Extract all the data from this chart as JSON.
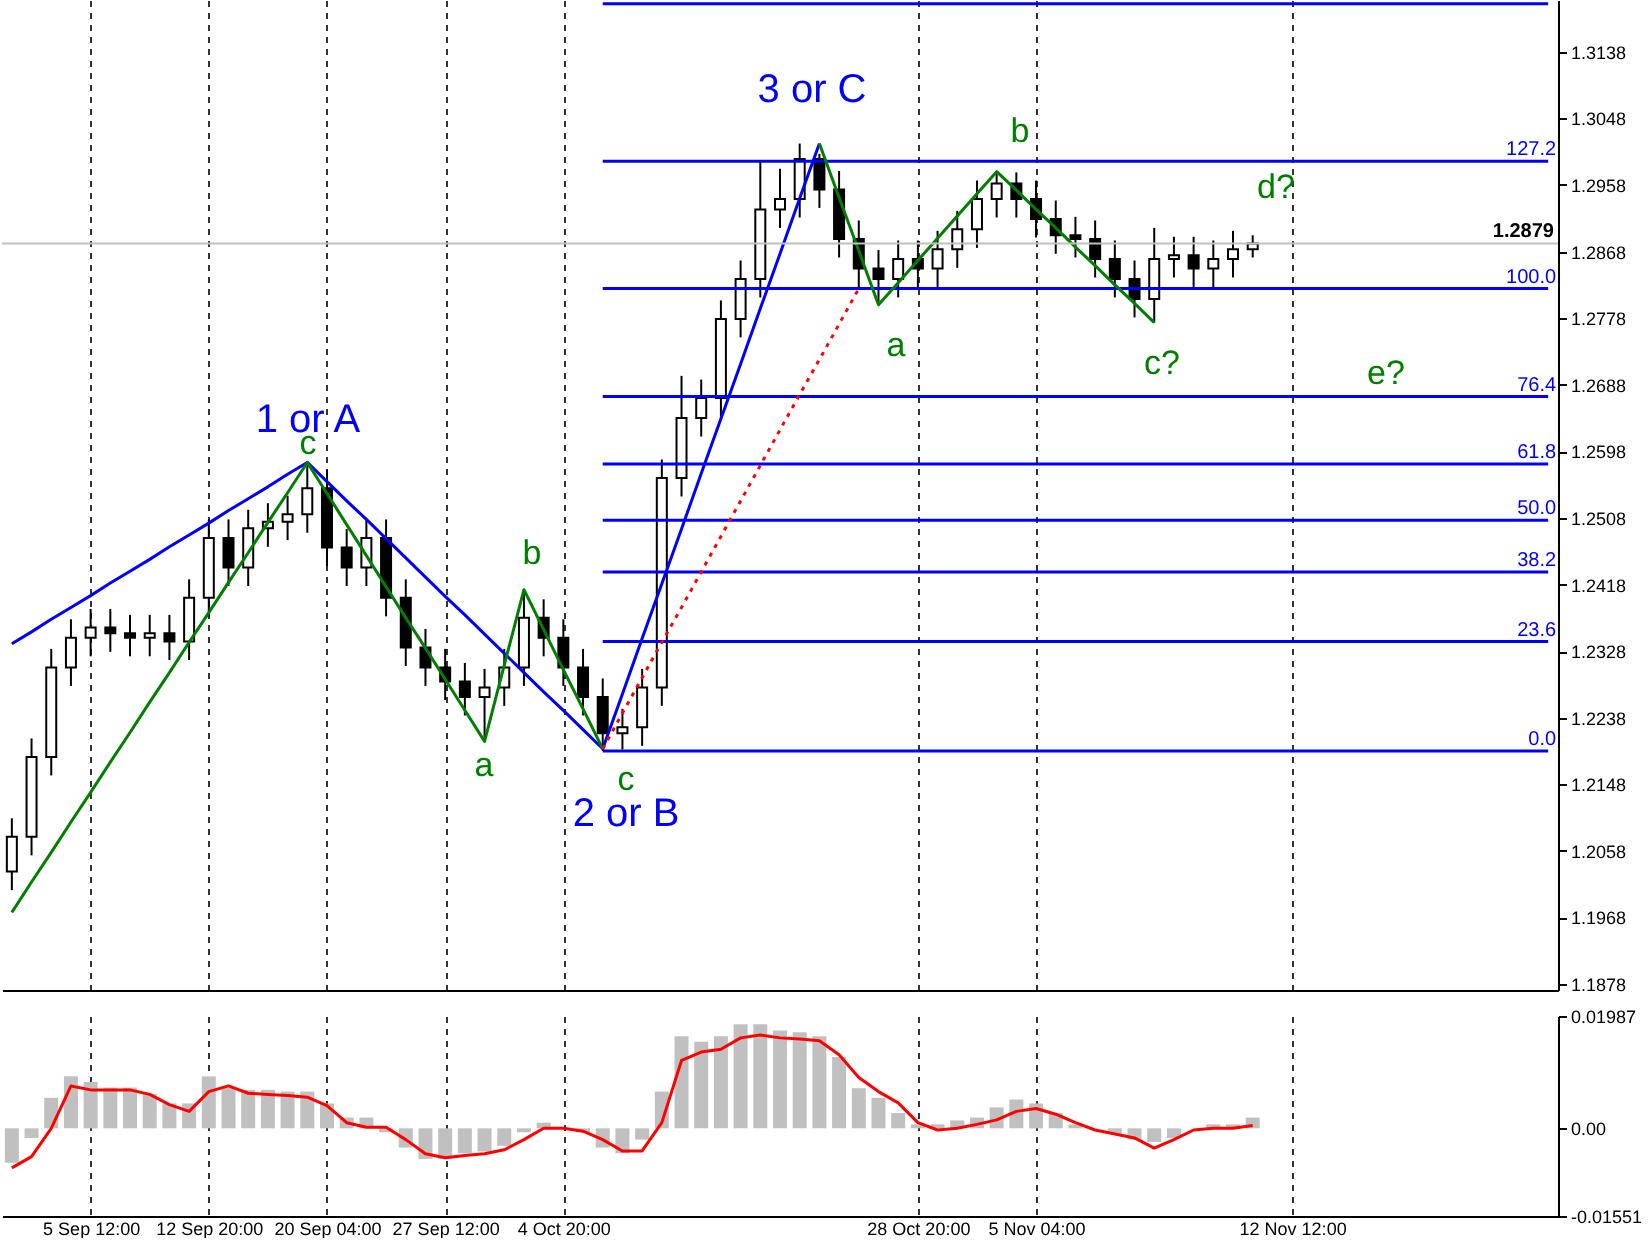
{
  "chart_data": [
    {
      "type": "candlestick",
      "categories": [
        null,
        null,
        null,
        null,
        null,
        null,
        null,
        null,
        null,
        null,
        null,
        null,
        null,
        null,
        null,
        null,
        null,
        null,
        null,
        null,
        null,
        null,
        null,
        null,
        null,
        null,
        null,
        null,
        null,
        null,
        null,
        null,
        null,
        null,
        null,
        null,
        null,
        null,
        null,
        null,
        null,
        null,
        null,
        null,
        null,
        null,
        null,
        null,
        null,
        null,
        null,
        null,
        null,
        null,
        null,
        null,
        null,
        null,
        null,
        null,
        null,
        null,
        null,
        null,
        null,
        null,
        null,
        null,
        null,
        null,
        null,
        null,
        null,
        null,
        null,
        null,
        null,
        null,
        null
      ],
      "ohlc": [
        [
          1.203,
          1.2102,
          1.2005,
          1.2077
        ],
        [
          1.2077,
          1.221,
          1.2052,
          1.2185
        ],
        [
          1.2185,
          1.2331,
          1.216,
          1.2306
        ],
        [
          1.2306,
          1.2371,
          1.2281,
          1.2346
        ],
        [
          1.2346,
          1.2385,
          1.2321,
          1.236
        ],
        [
          1.236,
          1.2385,
          1.2327,
          1.2352
        ],
        [
          1.2352,
          1.2377,
          1.2321,
          1.2346
        ],
        [
          1.2346,
          1.2377,
          1.2321,
          1.2352
        ],
        [
          1.2352,
          1.2377,
          1.2316,
          1.2341
        ],
        [
          1.2341,
          1.2425,
          1.2316,
          1.24
        ],
        [
          1.24,
          1.2506,
          1.2375,
          1.2481
        ],
        [
          1.2481,
          1.2506,
          1.2416,
          1.2441
        ],
        [
          1.2441,
          1.2519,
          1.2416,
          1.2494
        ],
        [
          1.2494,
          1.2528,
          1.2469,
          1.2503
        ],
        [
          1.2503,
          1.2538,
          1.2478,
          1.2513
        ],
        [
          1.2513,
          1.2583,
          1.2488,
          1.2548
        ],
        [
          1.2548,
          1.2573,
          1.2443,
          1.2468
        ],
        [
          1.2468,
          1.2493,
          1.2416,
          1.2441
        ],
        [
          1.2441,
          1.2506,
          1.2416,
          1.2481
        ],
        [
          1.2481,
          1.2506,
          1.2375,
          1.24
        ],
        [
          1.24,
          1.2425,
          1.2308,
          1.2333
        ],
        [
          1.2333,
          1.2358,
          1.2281,
          1.2306
        ],
        [
          1.2306,
          1.2331,
          1.2262,
          1.2287
        ],
        [
          1.2287,
          1.2312,
          1.2241,
          1.2266
        ],
        [
          1.2266,
          1.2304,
          1.2206,
          1.2279
        ],
        [
          1.2279,
          1.2331,
          1.2254,
          1.2306
        ],
        [
          1.2306,
          1.2411,
          1.2281,
          1.2373
        ],
        [
          1.2373,
          1.2398,
          1.2321,
          1.2346
        ],
        [
          1.2346,
          1.2371,
          1.2281,
          1.2306
        ],
        [
          1.2306,
          1.2331,
          1.2241,
          1.2266
        ],
        [
          1.2266,
          1.2291,
          1.2193,
          1.2217
        ],
        [
          1.2217,
          1.225,
          1.2195,
          1.2225
        ],
        [
          1.2225,
          1.2304,
          1.22,
          1.2279
        ],
        [
          1.2279,
          1.2587,
          1.2254,
          1.2562
        ],
        [
          1.2562,
          1.27,
          1.2537,
          1.2643
        ],
        [
          1.2643,
          1.2695,
          1.2618,
          1.267
        ],
        [
          1.267,
          1.2802,
          1.2645,
          1.2777
        ],
        [
          1.2777,
          1.2856,
          1.2752,
          1.2831
        ],
        [
          1.2831,
          1.299,
          1.2806,
          1.2925
        ],
        [
          1.2925,
          1.298,
          1.29,
          1.2939
        ],
        [
          1.2939,
          1.3014,
          1.2914,
          1.2993
        ],
        [
          1.2993,
          1.3,
          1.2927,
          1.2952
        ],
        [
          1.2952,
          1.2977,
          1.286,
          1.2885
        ],
        [
          1.2885,
          1.291,
          1.282,
          1.2845
        ],
        [
          1.2845,
          1.287,
          1.2796,
          1.2831
        ],
        [
          1.2831,
          1.2883,
          1.2806,
          1.2858
        ],
        [
          1.2858,
          1.2883,
          1.282,
          1.2845
        ],
        [
          1.2845,
          1.2896,
          1.282,
          1.2871
        ],
        [
          1.2871,
          1.2923,
          1.2846,
          1.2898
        ],
        [
          1.2898,
          1.2964,
          1.2873,
          1.2939
        ],
        [
          1.2939,
          1.2976,
          1.2914,
          1.296
        ],
        [
          1.296,
          1.2975,
          1.2914,
          1.2939
        ],
        [
          1.2939,
          1.2964,
          1.2887,
          1.2912
        ],
        [
          1.2912,
          1.2937,
          1.2865,
          1.289
        ],
        [
          1.289,
          1.2915,
          1.286,
          1.2885
        ],
        [
          1.2885,
          1.291,
          1.2833,
          1.2858
        ],
        [
          1.2858,
          1.2883,
          1.2806,
          1.2831
        ],
        [
          1.2831,
          1.2856,
          1.2779,
          1.2804
        ],
        [
          1.2804,
          1.29,
          1.2772,
          1.2858
        ],
        [
          1.2858,
          1.2888,
          1.2833,
          1.2863
        ],
        [
          1.2863,
          1.2888,
          1.282,
          1.2845
        ],
        [
          1.2845,
          1.2883,
          1.282,
          1.2858
        ],
        [
          1.2858,
          1.2896,
          1.2833,
          1.2871
        ],
        [
          1.2871,
          1.289,
          1.286,
          1.2879
        ],
        null,
        null,
        null,
        null,
        null,
        null,
        null,
        null,
        null,
        null,
        null,
        null,
        null,
        null,
        null
      ],
      "ylim": [
        1.187,
        1.3208
      ],
      "yticks": [
        1.1878,
        1.1968,
        1.2058,
        1.2148,
        1.2238,
        1.2328,
        1.2418,
        1.2508,
        1.2598,
        1.2688,
        1.2778,
        1.2868,
        1.2958,
        1.3048,
        1.3138
      ],
      "grid": "x",
      "tick_labels": "y",
      "series": [
        {
          "type": "line",
          "color": "#0000ff",
          "values": [
            null,
            null,
            null,
            null,
            null,
            null,
            null,
            null,
            null,
            null,
            null,
            null,
            null,
            null,
            null,
            null,
            null,
            null,
            null,
            null,
            null,
            null,
            null,
            null,
            null,
            null,
            null,
            null,
            null,
            null,
            1.3203,
            1.3203,
            1.3203,
            1.3203,
            1.3203,
            1.3203,
            1.3203,
            1.3203,
            1.3203,
            1.3203,
            1.3203,
            1.3203,
            1.3203,
            1.3203,
            1.3203,
            1.3203,
            1.3203,
            1.3203,
            1.3203,
            1.3203,
            1.3203,
            1.3203,
            1.3203,
            1.3203,
            1.3203,
            1.3203,
            1.3203,
            1.3203,
            1.3203,
            1.3203,
            1.3203,
            1.3203,
            1.3203,
            1.3203,
            1.3203,
            1.3203,
            1.3203,
            1.3203,
            1.3203,
            1.3203,
            1.3203,
            1.3203,
            1.3203,
            1.3203,
            1.3203,
            1.3203,
            1.3203,
            1.3203,
            1.3203
          ]
        },
        {
          "type": "line",
          "name": "127.2",
          "color": "#0000ff",
          "values": [
            null,
            null,
            null,
            null,
            null,
            null,
            null,
            null,
            null,
            null,
            null,
            null,
            null,
            null,
            null,
            null,
            null,
            null,
            null,
            null,
            null,
            null,
            null,
            null,
            null,
            null,
            null,
            null,
            null,
            null,
            1.299,
            1.299,
            1.299,
            1.299,
            1.299,
            1.299,
            1.299,
            1.299,
            1.299,
            1.299,
            1.299,
            1.299,
            1.299,
            1.299,
            1.299,
            1.299,
            1.299,
            1.299,
            1.299,
            1.299,
            1.299,
            1.299,
            1.299,
            1.299,
            1.299,
            1.299,
            1.299,
            1.299,
            1.299,
            1.299,
            1.299,
            1.299,
            1.299,
            1.299,
            1.299,
            1.299,
            1.299,
            1.299,
            1.299,
            1.299,
            1.299,
            1.299,
            1.299,
            1.299,
            1.299,
            1.299,
            1.299,
            1.299,
            1.299
          ]
        },
        {
          "type": "line",
          "name": "100.0",
          "color": "#0000ff",
          "values": [
            null,
            null,
            null,
            null,
            null,
            null,
            null,
            null,
            null,
            null,
            null,
            null,
            null,
            null,
            null,
            null,
            null,
            null,
            null,
            null,
            null,
            null,
            null,
            null,
            null,
            null,
            null,
            null,
            null,
            null,
            1.2818,
            1.2818,
            1.2818,
            1.2818,
            1.2818,
            1.2818,
            1.2818,
            1.2818,
            1.2818,
            1.2818,
            1.2818,
            1.2818,
            1.2818,
            1.2818,
            1.2818,
            1.2818,
            1.2818,
            1.2818,
            1.2818,
            1.2818,
            1.2818,
            1.2818,
            1.2818,
            1.2818,
            1.2818,
            1.2818,
            1.2818,
            1.2818,
            1.2818,
            1.2818,
            1.2818,
            1.2818,
            1.2818,
            1.2818,
            1.2818,
            1.2818,
            1.2818,
            1.2818,
            1.2818,
            1.2818,
            1.2818,
            1.2818,
            1.2818,
            1.2818,
            1.2818,
            1.2818,
            1.2818,
            1.2818,
            1.2818
          ]
        },
        {
          "type": "line",
          "name": "76.4",
          "color": "#0000ff",
          "values": [
            null,
            null,
            null,
            null,
            null,
            null,
            null,
            null,
            null,
            null,
            null,
            null,
            null,
            null,
            null,
            null,
            null,
            null,
            null,
            null,
            null,
            null,
            null,
            null,
            null,
            null,
            null,
            null,
            null,
            null,
            1.2672,
            1.2672,
            1.2672,
            1.2672,
            1.2672,
            1.2672,
            1.2672,
            1.2672,
            1.2672,
            1.2672,
            1.2672,
            1.2672,
            1.2672,
            1.2672,
            1.2672,
            1.2672,
            1.2672,
            1.2672,
            1.2672,
            1.2672,
            1.2672,
            1.2672,
            1.2672,
            1.2672,
            1.2672,
            1.2672,
            1.2672,
            1.2672,
            1.2672,
            1.2672,
            1.2672,
            1.2672,
            1.2672,
            1.2672,
            1.2672,
            1.2672,
            1.2672,
            1.2672,
            1.2672,
            1.2672,
            1.2672,
            1.2672,
            1.2672,
            1.2672,
            1.2672,
            1.2672,
            1.2672,
            1.2672,
            1.2672
          ]
        },
        {
          "type": "line",
          "name": "61.8",
          "color": "#0000ff",
          "values": [
            null,
            null,
            null,
            null,
            null,
            null,
            null,
            null,
            null,
            null,
            null,
            null,
            null,
            null,
            null,
            null,
            null,
            null,
            null,
            null,
            null,
            null,
            null,
            null,
            null,
            null,
            null,
            null,
            null,
            null,
            1.2581,
            1.2581,
            1.2581,
            1.2581,
            1.2581,
            1.2581,
            1.2581,
            1.2581,
            1.2581,
            1.2581,
            1.2581,
            1.2581,
            1.2581,
            1.2581,
            1.2581,
            1.2581,
            1.2581,
            1.2581,
            1.2581,
            1.2581,
            1.2581,
            1.2581,
            1.2581,
            1.2581,
            1.2581,
            1.2581,
            1.2581,
            1.2581,
            1.2581,
            1.2581,
            1.2581,
            1.2581,
            1.2581,
            1.2581,
            1.2581,
            1.2581,
            1.2581,
            1.2581,
            1.2581,
            1.2581,
            1.2581,
            1.2581,
            1.2581,
            1.2581,
            1.2581,
            1.2581,
            1.2581,
            1.2581,
            1.2581
          ]
        },
        {
          "type": "line",
          "name": "50.0",
          "color": "#0000ff",
          "values": [
            null,
            null,
            null,
            null,
            null,
            null,
            null,
            null,
            null,
            null,
            null,
            null,
            null,
            null,
            null,
            null,
            null,
            null,
            null,
            null,
            null,
            null,
            null,
            null,
            null,
            null,
            null,
            null,
            null,
            null,
            1.2505,
            1.2505,
            1.2505,
            1.2505,
            1.2505,
            1.2505,
            1.2505,
            1.2505,
            1.2505,
            1.2505,
            1.2505,
            1.2505,
            1.2505,
            1.2505,
            1.2505,
            1.2505,
            1.2505,
            1.2505,
            1.2505,
            1.2505,
            1.2505,
            1.2505,
            1.2505,
            1.2505,
            1.2505,
            1.2505,
            1.2505,
            1.2505,
            1.2505,
            1.2505,
            1.2505,
            1.2505,
            1.2505,
            1.2505,
            1.2505,
            1.2505,
            1.2505,
            1.2505,
            1.2505,
            1.2505,
            1.2505,
            1.2505,
            1.2505,
            1.2505,
            1.2505,
            1.2505,
            1.2505,
            1.2505,
            1.2505
          ]
        },
        {
          "type": "line",
          "name": "38.2",
          "color": "#0000ff",
          "values": [
            null,
            null,
            null,
            null,
            null,
            null,
            null,
            null,
            null,
            null,
            null,
            null,
            null,
            null,
            null,
            null,
            null,
            null,
            null,
            null,
            null,
            null,
            null,
            null,
            null,
            null,
            null,
            null,
            null,
            null,
            1.2435,
            1.2435,
            1.2435,
            1.2435,
            1.2435,
            1.2435,
            1.2435,
            1.2435,
            1.2435,
            1.2435,
            1.2435,
            1.2435,
            1.2435,
            1.2435,
            1.2435,
            1.2435,
            1.2435,
            1.2435,
            1.2435,
            1.2435,
            1.2435,
            1.2435,
            1.2435,
            1.2435,
            1.2435,
            1.2435,
            1.2435,
            1.2435,
            1.2435,
            1.2435,
            1.2435,
            1.2435,
            1.2435,
            1.2435,
            1.2435,
            1.2435,
            1.2435,
            1.2435,
            1.2435,
            1.2435,
            1.2435,
            1.2435,
            1.2435,
            1.2435,
            1.2435,
            1.2435,
            1.2435,
            1.2435,
            1.2435
          ]
        },
        {
          "type": "line",
          "name": "23.6",
          "color": "#0000ff",
          "values": [
            null,
            null,
            null,
            null,
            null,
            null,
            null,
            null,
            null,
            null,
            null,
            null,
            null,
            null,
            null,
            null,
            null,
            null,
            null,
            null,
            null,
            null,
            null,
            null,
            null,
            null,
            null,
            null,
            null,
            null,
            1.2341,
            1.2341,
            1.2341,
            1.2341,
            1.2341,
            1.2341,
            1.2341,
            1.2341,
            1.2341,
            1.2341,
            1.2341,
            1.2341,
            1.2341,
            1.2341,
            1.2341,
            1.2341,
            1.2341,
            1.2341,
            1.2341,
            1.2341,
            1.2341,
            1.2341,
            1.2341,
            1.2341,
            1.2341,
            1.2341,
            1.2341,
            1.2341,
            1.2341,
            1.2341,
            1.2341,
            1.2341,
            1.2341,
            1.2341,
            1.2341,
            1.2341,
            1.2341,
            1.2341,
            1.2341,
            1.2341,
            1.2341,
            1.2341,
            1.2341,
            1.2341,
            1.2341,
            1.2341,
            1.2341,
            1.2341,
            1.2341
          ]
        },
        {
          "type": "line",
          "name": "0.0",
          "color": "#0000ff",
          "values": [
            null,
            null,
            null,
            null,
            null,
            null,
            null,
            null,
            null,
            null,
            null,
            null,
            null,
            null,
            null,
            null,
            null,
            null,
            null,
            null,
            null,
            null,
            null,
            null,
            null,
            null,
            null,
            null,
            null,
            null,
            1.2193,
            1.2193,
            1.2193,
            1.2193,
            1.2193,
            1.2193,
            1.2193,
            1.2193,
            1.2193,
            1.2193,
            1.2193,
            1.2193,
            1.2193,
            1.2193,
            1.2193,
            1.2193,
            1.2193,
            1.2193,
            1.2193,
            1.2193,
            1.2193,
            1.2193,
            1.2193,
            1.2193,
            1.2193,
            1.2193,
            1.2193,
            1.2193,
            1.2193,
            1.2193,
            1.2193,
            1.2193,
            1.2193,
            1.2193,
            1.2193,
            1.2193,
            1.2193,
            1.2193,
            1.2193,
            1.2193,
            1.2193,
            1.2193,
            1.2193,
            1.2193,
            1.2193,
            1.2193,
            1.2193,
            1.2193,
            1.2193
          ]
        },
        {
          "type": "line",
          "color": "#0000ff",
          "values": [
            1.2338,
            1.2354,
            1.2371,
            1.2387,
            1.2403,
            1.242,
            1.2436,
            1.2452,
            1.2469,
            1.2485,
            1.2501,
            1.2518,
            1.2534,
            1.255,
            1.2567,
            1.2583,
            1.2557,
            1.2531,
            1.2506,
            1.248,
            1.2454,
            1.2428,
            1.2402,
            1.2377,
            1.2351,
            1.2325,
            1.2299,
            1.2273,
            1.2248,
            1.2222,
            1.2196,
            1.227,
            1.2345,
            1.2419,
            1.2493,
            1.2568,
            1.2642,
            1.2716,
            1.2791,
            1.2865,
            1.294,
            1.3014,
            null,
            null,
            null,
            null,
            null,
            null,
            null,
            null,
            null,
            null,
            null,
            null,
            null,
            null,
            null,
            null,
            null,
            null,
            null,
            null,
            null,
            null,
            null,
            null,
            null,
            null,
            null,
            null,
            null,
            null,
            null,
            null,
            null,
            null,
            null,
            null,
            null
          ]
        },
        {
          "type": "line",
          "color": "#008000",
          "values": [
            1.1975,
            1.2016,
            1.2056,
            1.2097,
            1.2137,
            1.2178,
            1.2218,
            1.2259,
            1.2299,
            1.234,
            1.238,
            1.2421,
            1.2461,
            1.2502,
            1.2542,
            1.2583,
            1.2541,
            1.2499,
            1.2457,
            1.2415,
            1.2373,
            1.2332,
            1.229,
            1.2248,
            1.2206,
            1.2309,
            1.2411,
            1.2357,
            1.2303,
            1.225,
            1.2196,
            null,
            null,
            null,
            null,
            null,
            null,
            null,
            null,
            null,
            null,
            null,
            null,
            null,
            null,
            null,
            null,
            null,
            null,
            null,
            null,
            null,
            null,
            null,
            null,
            null,
            null,
            null,
            null,
            null,
            null,
            null,
            null,
            null,
            null,
            null,
            null,
            null,
            null,
            null,
            null,
            null,
            null,
            null,
            null,
            null,
            null,
            null,
            null
          ]
        },
        {
          "type": "line",
          "color": "#008000",
          "values": [
            null,
            null,
            null,
            null,
            null,
            null,
            null,
            null,
            null,
            null,
            null,
            null,
            null,
            null,
            null,
            null,
            null,
            null,
            null,
            null,
            null,
            null,
            null,
            null,
            null,
            null,
            null,
            null,
            null,
            null,
            null,
            null,
            null,
            null,
            null,
            null,
            null,
            null,
            null,
            null,
            null,
            1.3014,
            1.2941,
            1.2869,
            1.2796,
            1.2826,
            1.2856,
            1.2886,
            1.2916,
            1.2946,
            1.2976,
            1.2951,
            1.2925,
            1.29,
            1.2874,
            1.2849,
            1.2823,
            1.2798,
            1.2772,
            null,
            null,
            null,
            null,
            null,
            null,
            null,
            null,
            null,
            null,
            null,
            null,
            null,
            null,
            null,
            null,
            null,
            null,
            null,
            null
          ]
        },
        {
          "type": "line",
          "color": "#ff0000",
          "line_style": "dotted",
          "values": [
            null,
            null,
            null,
            null,
            null,
            null,
            null,
            null,
            null,
            null,
            null,
            null,
            null,
            null,
            null,
            null,
            null,
            null,
            null,
            null,
            null,
            null,
            null,
            null,
            null,
            null,
            null,
            null,
            null,
            null,
            1.2196,
            1.2244,
            1.2292,
            1.234,
            1.2387,
            1.2435,
            1.2483,
            1.2531,
            1.2579,
            1.2627,
            1.2675,
            1.2722,
            1.277,
            1.2818,
            null,
            null,
            null,
            null,
            null,
            null,
            null,
            null,
            null,
            null,
            null,
            null,
            null,
            null,
            null,
            null,
            null,
            null,
            null,
            null,
            null,
            null,
            null,
            null,
            null,
            null,
            null,
            null,
            null,
            null,
            null,
            null,
            null,
            null,
            null
          ]
        }
      ],
      "ref_lines": [
        {
          "axis": "y",
          "value": 1.2879,
          "label": "1.2879",
          "color": "#c0c0c0"
        }
      ],
      "annotations": [
        "1   or  A",
        "2  or  B",
        "3   or  C",
        "c",
        "a",
        "b",
        "c",
        "a",
        "b",
        "c?",
        "d?",
        "e?"
      ]
    },
    {
      "type": "bar",
      "categories": [
        null,
        null,
        null,
        null,
        "5 Sep 12:00",
        null,
        null,
        null,
        null,
        null,
        "12 Sep 20:00",
        null,
        null,
        null,
        null,
        null,
        "20 Sep 04:00",
        null,
        null,
        null,
        null,
        null,
        "27 Sep 12:00",
        null,
        null,
        null,
        null,
        null,
        "4 Oct 20:00",
        null,
        null,
        null,
        null,
        null,
        null,
        null,
        null,
        null,
        null,
        null,
        null,
        null,
        null,
        null,
        null,
        null,
        "28 Oct 20:00",
        null,
        null,
        null,
        null,
        null,
        "5 Nov 04:00",
        null,
        null,
        null,
        null,
        null,
        null,
        null,
        null,
        null,
        null,
        null,
        null,
        "12 Nov 12:00",
        null,
        null,
        null,
        null,
        null,
        null,
        null,
        null,
        null,
        null,
        null,
        null,
        null
      ],
      "ylim": [
        -0.01551,
        0.01987
      ],
      "yticks": [
        -0.01551,
        {
          "value": 0,
          "label": "0.00"
        },
        0.01987
      ],
      "grid": "x",
      "series": [
        {
          "color": "#c0c0c0",
          "values": [
            -0.0061,
            -0.0017,
            0.0054,
            0.0092,
            0.0082,
            0.0072,
            0.0072,
            0.0061,
            0.0044,
            0.0044,
            0.0092,
            0.0072,
            0.0068,
            0.0068,
            0.0065,
            0.0065,
            0.0044,
            0.0019,
            0.0019,
            -0.0007,
            -0.0034,
            -0.0054,
            -0.0054,
            -0.0044,
            -0.0041,
            -0.0031,
            -0.0007,
            0.001,
            0.0,
            -0.0007,
            -0.0034,
            -0.0044,
            -0.002,
            0.0065,
            0.0163,
            0.0153,
            0.0163,
            0.0184,
            0.0184,
            0.0173,
            0.017,
            0.0163,
            0.0126,
            0.0071,
            0.0054,
            0.0027,
            0.0007,
            0.0007,
            0.0014,
            0.0019,
            0.0037,
            0.0051,
            0.0044,
            0.0027,
            0.0007,
            0.0,
            -0.001,
            -0.002,
            -0.0024,
            -0.0017,
            0.0,
            0.0007,
            0.0007,
            0.0019,
            null,
            null,
            null,
            null,
            null,
            null,
            null,
            null,
            null,
            null,
            null,
            null,
            null,
            null,
            null
          ]
        },
        {
          "type": "line",
          "color": "#ff0000",
          "values": [
            -0.007,
            -0.005,
            0.0,
            0.0075,
            0.0068,
            0.0068,
            0.0068,
            0.006,
            0.0042,
            0.003,
            0.0065,
            0.0075,
            0.0062,
            0.006,
            0.0058,
            0.0055,
            0.004,
            0.001,
            0.0002,
            0.0002,
            -0.002,
            -0.0045,
            -0.0052,
            -0.0048,
            -0.0045,
            -0.0038,
            -0.002,
            0.0,
            0.0,
            -0.0005,
            -0.002,
            -0.004,
            -0.004,
            0.001,
            0.012,
            0.0135,
            0.014,
            0.016,
            0.0165,
            0.016,
            0.0158,
            0.0155,
            0.013,
            0.009,
            0.0065,
            0.0045,
            0.001,
            -0.0003,
            0.0,
            0.0007,
            0.0015,
            0.003,
            0.0035,
            0.0025,
            0.001,
            -0.0003,
            -0.001,
            -0.0017,
            -0.0035,
            -0.002,
            -0.0003,
            0.0,
            0.0,
            0.0005,
            null,
            null,
            null,
            null,
            null,
            null,
            null,
            null,
            null,
            null,
            null,
            null,
            null,
            null,
            null
          ]
        }
      ]
    }
  ]
}
